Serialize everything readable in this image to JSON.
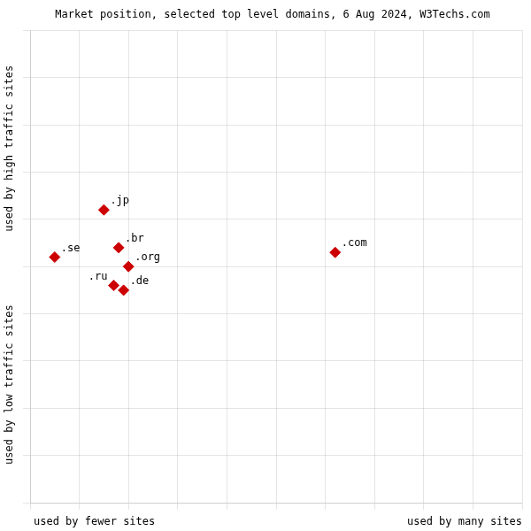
{
  "chart_data": {
    "type": "scatter",
    "title": "Market position, selected top level domains, 6 Aug 2024, W3Techs.com",
    "xlabel": {
      "low": "used by fewer sites",
      "high": "used by many sites"
    },
    "ylabel": {
      "low": "used by low traffic sites",
      "high": "used by high traffic sites"
    },
    "labels": [
      ".jp",
      ".se",
      ".br",
      ".org",
      ".ru",
      ".de",
      ".com"
    ],
    "x": [
      15,
      5,
      18,
      20,
      17,
      19,
      62
    ],
    "values": [
      62,
      52,
      54,
      50,
      46,
      45,
      53
    ],
    "color": "#cc0000",
    "marker": "diamond",
    "xlim": [
      0,
      100
    ],
    "ylim": [
      0,
      100
    ],
    "xticks": [
      0,
      10,
      20,
      30,
      40,
      50,
      60,
      70,
      80,
      90,
      100
    ],
    "yticks": [
      0,
      10,
      20,
      30,
      40,
      50,
      60,
      70,
      80,
      90,
      100
    ],
    "grid": true,
    "tick_labels": false
  }
}
